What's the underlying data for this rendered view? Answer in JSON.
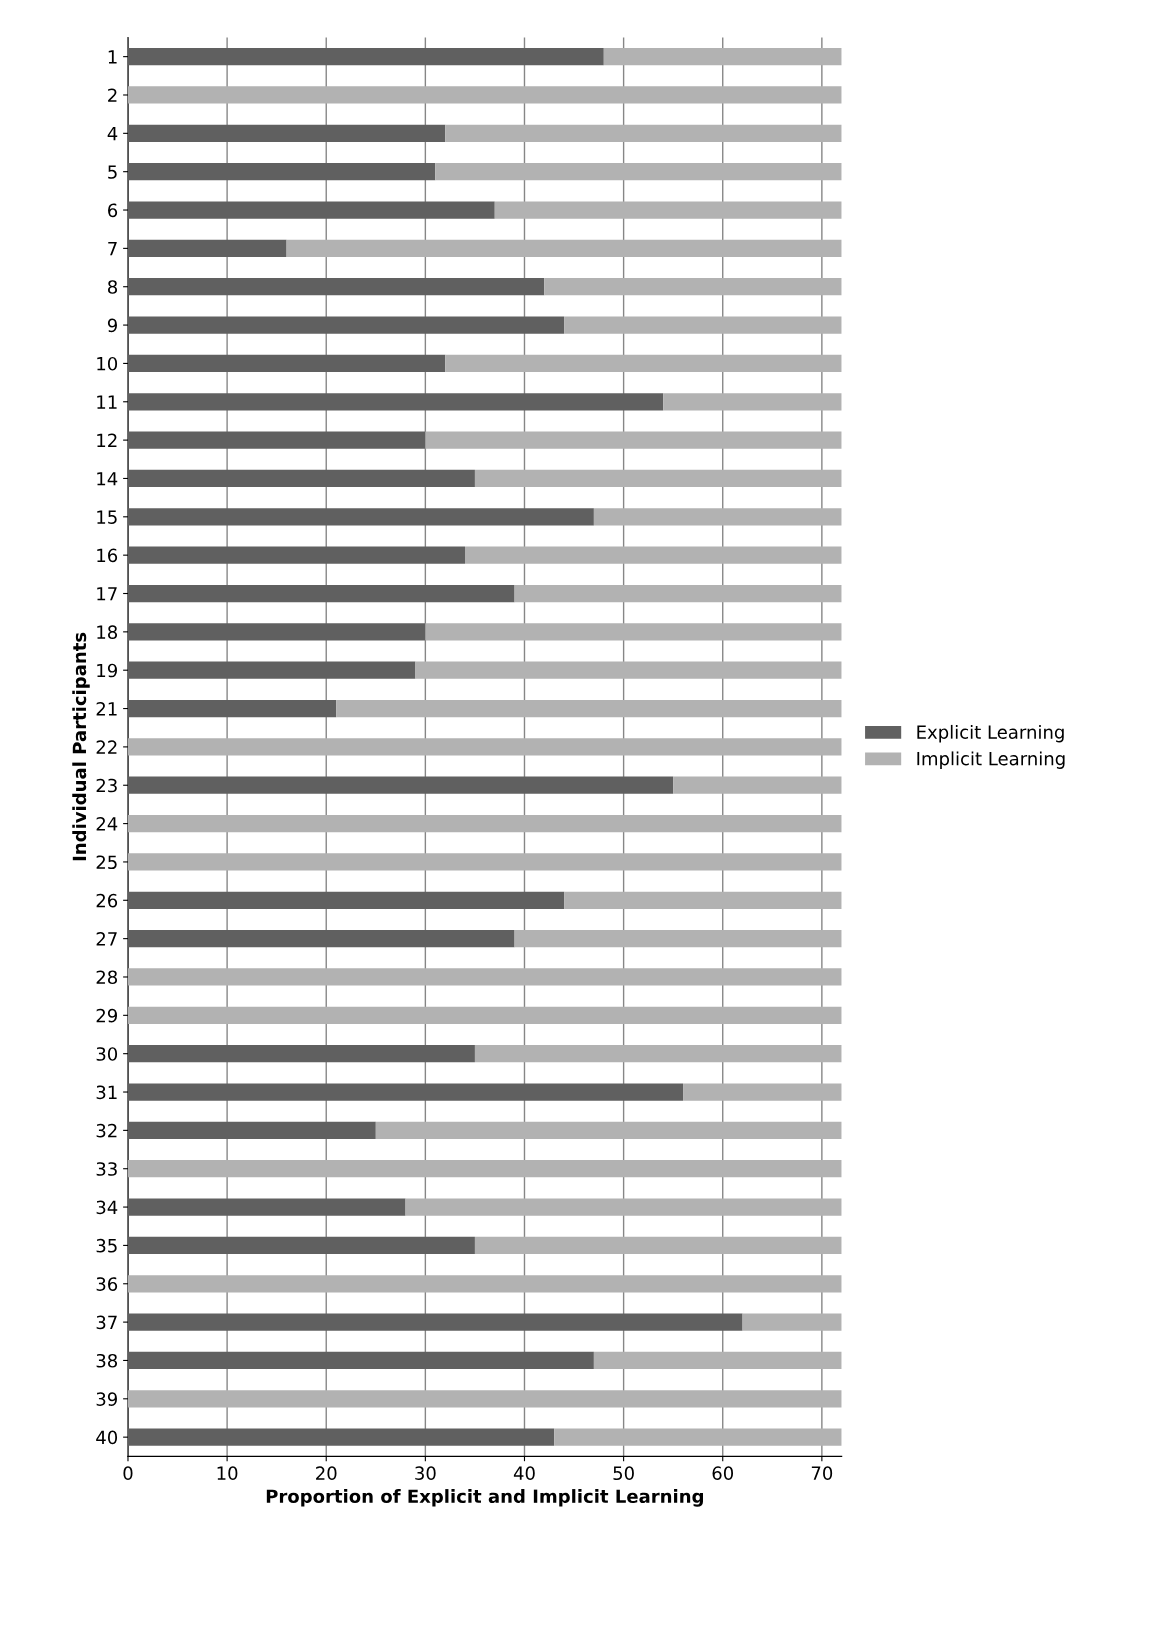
{
  "chart_data": {
    "type": "bar",
    "orientation": "horizontal",
    "stacked": true,
    "xlabel": "Proportion of Explicit and Implicit Learning",
    "ylabel": "Individual Participants",
    "categories": [
      "1",
      "2",
      "4",
      "5",
      "6",
      "7",
      "8",
      "9",
      "10",
      "11",
      "12",
      "14",
      "15",
      "16",
      "17",
      "18",
      "19",
      "21",
      "22",
      "23",
      "24",
      "25",
      "26",
      "27",
      "28",
      "29",
      "30",
      "31",
      "32",
      "33",
      "34",
      "35",
      "36",
      "37",
      "38",
      "39",
      "40"
    ],
    "series": [
      {
        "name": "Explicit Learning",
        "color": "#606060",
        "values": [
          48,
          0,
          32,
          31,
          37,
          16,
          42,
          44,
          32,
          54,
          30,
          35,
          47,
          34,
          39,
          30,
          29,
          21,
          0,
          55,
          0,
          0,
          44,
          39,
          0,
          0,
          35,
          56,
          25,
          0,
          28,
          35,
          0,
          62,
          47,
          0,
          43
        ]
      },
      {
        "name": "Implicit Learning",
        "color": "#b2b2b2",
        "values": [
          24,
          72,
          40,
          41,
          35,
          56,
          30,
          28,
          40,
          18,
          42,
          37,
          25,
          38,
          33,
          42,
          43,
          51,
          72,
          17,
          72,
          72,
          28,
          33,
          72,
          72,
          37,
          16,
          47,
          72,
          44,
          37,
          72,
          10,
          25,
          72,
          29
        ]
      }
    ],
    "xlim": [
      0,
      72
    ],
    "xticks": [
      0,
      10,
      20,
      30,
      40,
      50,
      60,
      70
    ],
    "grid": "x",
    "legend": "right"
  }
}
